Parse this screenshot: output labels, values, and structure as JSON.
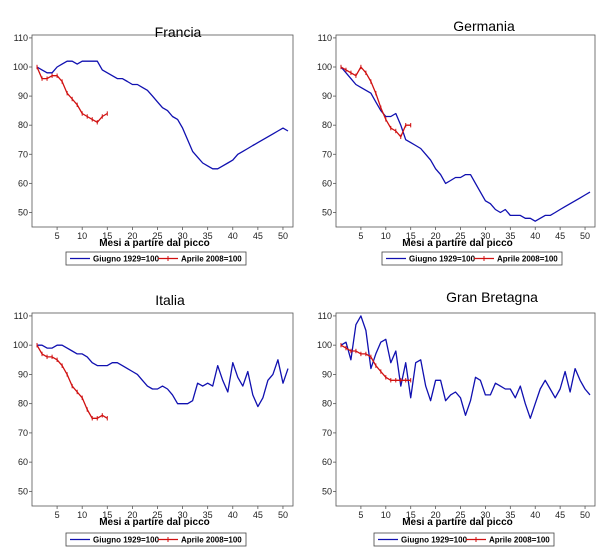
{
  "chart_data": [
    {
      "type": "line",
      "title": "Francia",
      "xlabel": "Mesi a partire dal picco",
      "ylabel": "",
      "xlim": [
        0,
        52
      ],
      "ylim": [
        45,
        111
      ],
      "xticks": [
        "5",
        "10",
        "15",
        "20",
        "25",
        "30",
        "35",
        "40",
        "45",
        "50"
      ],
      "yticks": [
        "50",
        "60",
        "70",
        "80",
        "90",
        "100",
        "110"
      ],
      "legend": "bottom",
      "series": [
        {
          "name": "Giugno 1929=100",
          "color": "#1010b0",
          "x": [
            1,
            2,
            3,
            4,
            5,
            6,
            7,
            8,
            9,
            10,
            11,
            12,
            13,
            14,
            15,
            16,
            17,
            18,
            19,
            20,
            21,
            22,
            23,
            24,
            25,
            26,
            27,
            28,
            29,
            30,
            31,
            32,
            33,
            34,
            35,
            36,
            37,
            38,
            39,
            40,
            41,
            42,
            43,
            44,
            45,
            46,
            47,
            48,
            49,
            50,
            51
          ],
          "y": [
            100,
            99,
            98,
            98,
            100,
            101,
            102,
            102,
            101,
            102,
            102,
            102,
            102,
            99,
            98,
            97,
            96,
            96,
            95,
            94,
            94,
            93,
            92,
            90,
            88,
            86,
            85,
            83,
            82,
            79,
            75,
            71,
            69,
            67,
            66,
            65,
            65,
            66,
            67,
            68,
            70,
            71,
            72,
            73,
            74,
            75,
            76,
            77,
            78,
            79,
            78
          ]
        },
        {
          "name": "Aprile 2008=100",
          "color": "#d01010",
          "x": [
            1,
            2,
            3,
            4,
            5,
            6,
            7,
            8,
            9,
            10,
            11,
            12,
            13,
            14,
            15
          ],
          "y": [
            100,
            96,
            96,
            97,
            97,
            95,
            91,
            89,
            87,
            84,
            83,
            82,
            81,
            83,
            84
          ]
        }
      ]
    },
    {
      "type": "line",
      "title": "Germania",
      "xlabel": "Mesi a partire dal picco",
      "ylabel": "",
      "xlim": [
        0,
        52
      ],
      "ylim": [
        45,
        111
      ],
      "xticks": [
        "5",
        "10",
        "15",
        "20",
        "25",
        "30",
        "35",
        "40",
        "45",
        "50"
      ],
      "yticks": [
        "50",
        "60",
        "70",
        "80",
        "90",
        "100",
        "110"
      ],
      "legend": "bottom",
      "series": [
        {
          "name": "Giugno 1929=100",
          "color": "#1010b0",
          "x": [
            1,
            2,
            3,
            4,
            5,
            6,
            7,
            8,
            9,
            10,
            11,
            12,
            13,
            14,
            15,
            16,
            17,
            18,
            19,
            20,
            21,
            22,
            23,
            24,
            25,
            26,
            27,
            28,
            29,
            30,
            31,
            32,
            33,
            34,
            35,
            36,
            37,
            38,
            39,
            40,
            41,
            42,
            43,
            44,
            45,
            46,
            47,
            48,
            49,
            50,
            51
          ],
          "y": [
            100,
            98,
            96,
            94,
            93,
            92,
            91,
            88,
            85,
            83,
            83,
            84,
            80,
            75,
            74,
            73,
            72,
            70,
            68,
            65,
            63,
            60,
            61,
            62,
            62,
            63,
            63,
            60,
            57,
            54,
            53,
            51,
            50,
            51,
            49,
            49,
            49,
            48,
            48,
            47,
            48,
            49,
            49,
            50,
            51,
            52,
            53,
            54,
            55,
            56,
            57
          ]
        },
        {
          "name": "Aprile 2008=100",
          "color": "#d01010",
          "x": [
            1,
            2,
            3,
            4,
            5,
            6,
            7,
            8,
            9,
            10,
            11,
            12,
            13,
            14,
            15
          ],
          "y": [
            100,
            99,
            98,
            97,
            100,
            98,
            95,
            91,
            86,
            82,
            79,
            78,
            76,
            80,
            80
          ]
        }
      ]
    },
    {
      "type": "line",
      "title": "Italia",
      "xlabel": "Mesi a partire dal picco",
      "ylabel": "",
      "xlim": [
        0,
        52
      ],
      "ylim": [
        45,
        111
      ],
      "xticks": [
        "5",
        "10",
        "15",
        "20",
        "25",
        "30",
        "35",
        "40",
        "45",
        "50"
      ],
      "yticks": [
        "50",
        "60",
        "70",
        "80",
        "90",
        "100",
        "110"
      ],
      "legend": "bottom",
      "series": [
        {
          "name": "Giugno 1929=100",
          "color": "#1010b0",
          "x": [
            1,
            2,
            3,
            4,
            5,
            6,
            7,
            8,
            9,
            10,
            11,
            12,
            13,
            14,
            15,
            16,
            17,
            18,
            19,
            20,
            21,
            22,
            23,
            24,
            25,
            26,
            27,
            28,
            29,
            30,
            31,
            32,
            33,
            34,
            35,
            36,
            37,
            38,
            39,
            40,
            41,
            42,
            43,
            44,
            45,
            46,
            47,
            48,
            49,
            50,
            51
          ],
          "y": [
            100,
            100,
            99,
            99,
            100,
            100,
            99,
            98,
            97,
            97,
            96,
            94,
            93,
            93,
            93,
            94,
            94,
            93,
            92,
            91,
            90,
            88,
            86,
            85,
            85,
            86,
            85,
            83,
            80,
            80,
            80,
            81,
            87,
            86,
            87,
            86,
            93,
            88,
            84,
            94,
            89,
            86,
            91,
            83,
            79,
            82,
            88,
            90,
            95,
            87,
            92
          ]
        },
        {
          "name": "Aprile 2008=100",
          "color": "#d01010",
          "x": [
            1,
            2,
            3,
            4,
            5,
            6,
            7,
            8,
            9,
            10,
            11,
            12,
            13,
            14,
            15
          ],
          "y": [
            100,
            97,
            96,
            96,
            95,
            93,
            90,
            86,
            84,
            82,
            78,
            75,
            75,
            76,
            75
          ]
        }
      ]
    },
    {
      "type": "line",
      "title": "Gran Bretagna",
      "xlabel": "Mesi a partire dal picco",
      "ylabel": "",
      "xlim": [
        0,
        52
      ],
      "ylim": [
        45,
        111
      ],
      "xticks": [
        "5",
        "10",
        "15",
        "20",
        "25",
        "30",
        "35",
        "40",
        "45",
        "50"
      ],
      "yticks": [
        "50",
        "60",
        "70",
        "80",
        "90",
        "100",
        "110"
      ],
      "legend": "bottom",
      "series": [
        {
          "name": "Giugno 1929=100",
          "color": "#1010b0",
          "x": [
            1,
            2,
            3,
            4,
            5,
            6,
            7,
            8,
            9,
            10,
            11,
            12,
            13,
            14,
            15,
            16,
            17,
            18,
            19,
            20,
            21,
            22,
            23,
            24,
            25,
            26,
            27,
            28,
            29,
            30,
            31,
            32,
            33,
            34,
            35,
            36,
            37,
            38,
            39,
            40,
            41,
            42,
            43,
            44,
            45,
            46,
            47,
            48,
            49,
            50,
            51
          ],
          "y": [
            100,
            101,
            95,
            107,
            110,
            105,
            92,
            97,
            101,
            102,
            94,
            98,
            86,
            94,
            82,
            94,
            95,
            86,
            81,
            88,
            88,
            81,
            83,
            84,
            82,
            76,
            81,
            89,
            88,
            83,
            83,
            87,
            86,
            85,
            85,
            82,
            86,
            80,
            75,
            80,
            85,
            88,
            85,
            82,
            85,
            91,
            84,
            92,
            88,
            85,
            83
          ]
        },
        {
          "name": "Aprile 2008=100",
          "color": "#d01010",
          "x": [
            1,
            2,
            3,
            4,
            5,
            6,
            7,
            8,
            9,
            10,
            11,
            12,
            13,
            14,
            15
          ],
          "y": [
            100,
            99,
            98,
            98,
            97,
            97,
            96,
            93,
            91,
            89,
            88,
            88,
            88,
            88,
            88
          ]
        }
      ]
    }
  ]
}
